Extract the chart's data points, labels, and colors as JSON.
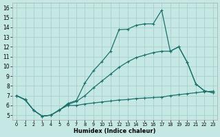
{
  "xlabel": "Humidex (Indice chaleur)",
  "xlim": [
    -0.5,
    23.5
  ],
  "ylim": [
    4.5,
    16.5
  ],
  "yticks": [
    5,
    6,
    7,
    8,
    9,
    10,
    11,
    12,
    13,
    14,
    15,
    16
  ],
  "xticks": [
    0,
    1,
    2,
    3,
    4,
    5,
    6,
    7,
    8,
    9,
    10,
    11,
    12,
    13,
    14,
    15,
    16,
    17,
    18,
    19,
    20,
    21,
    22,
    23
  ],
  "bg_color": "#c5e8e5",
  "grid_color": "#a8d0cc",
  "line_color": "#1a706a",
  "line1_y": [
    7.0,
    6.6,
    5.5,
    4.9,
    5.0,
    5.5,
    6.2,
    6.5,
    8.3,
    9.55,
    10.5,
    11.55,
    13.75,
    13.8,
    14.2,
    14.35,
    14.35,
    15.75,
    11.55,
    12.0,
    10.4,
    8.2,
    7.5,
    7.3
  ],
  "line2_y": [
    7.0,
    6.55,
    5.5,
    4.9,
    5.0,
    5.5,
    6.1,
    6.4,
    7.0,
    7.8,
    8.5,
    9.2,
    9.9,
    10.45,
    10.9,
    11.15,
    11.4,
    11.55,
    11.55,
    12.0,
    10.4,
    8.2,
    7.5,
    7.3
  ],
  "line3_y": [
    7.0,
    6.6,
    5.5,
    4.9,
    5.0,
    5.55,
    6.0,
    6.0,
    6.15,
    6.25,
    6.35,
    6.45,
    6.55,
    6.6,
    6.7,
    6.75,
    6.8,
    6.85,
    7.0,
    7.1,
    7.2,
    7.3,
    7.4,
    7.45
  ]
}
